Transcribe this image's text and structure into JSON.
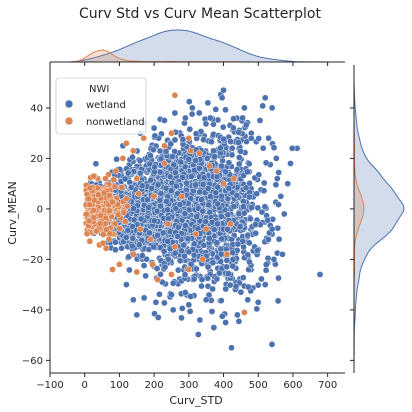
{
  "chart_data": {
    "type": "scatter",
    "title": "Curv Std vs Curv Mean Scatterplot",
    "xlabel": "Curv_STD",
    "ylabel": "Curv_MEAN",
    "xlim": [
      -100,
      750
    ],
    "ylim": [
      -65,
      57
    ],
    "x_ticks": [
      -100,
      0,
      100,
      200,
      300,
      400,
      500,
      600,
      700
    ],
    "y_ticks": [
      -60,
      -40,
      -20,
      0,
      20,
      40
    ],
    "x_tick_labels": [
      "−100",
      "0",
      "100",
      "200",
      "300",
      "400",
      "500",
      "600",
      "700"
    ],
    "y_tick_labels": [
      "−60",
      "−40",
      "−20",
      "0",
      "20",
      "40"
    ],
    "grid": false,
    "marginals": [
      "top-kde-x",
      "right-kde-y"
    ],
    "legend": {
      "title": "NWI",
      "position": "top-left",
      "entries": [
        "wetland",
        "nonwetland"
      ]
    },
    "series": [
      {
        "name": "wetland",
        "color": "#4c72b0",
        "cloud": {
          "x_center": 270,
          "x_spread": 120,
          "x_min": 5,
          "x_max": 560,
          "y_spread": 11
        },
        "points": [
          [
            678,
            -26
          ],
          [
            612,
            24
          ],
          [
            598,
            24
          ],
          [
            593,
            18
          ],
          [
            552,
            20
          ],
          [
            540,
            40
          ],
          [
            520,
            44
          ],
          [
            505,
            35
          ],
          [
            480,
            30
          ],
          [
            460,
            40
          ],
          [
            400,
            47
          ],
          [
            396,
            44
          ],
          [
            362,
            36
          ],
          [
            355,
            42
          ],
          [
            540,
            -8
          ],
          [
            560,
            -12
          ],
          [
            565,
            5
          ],
          [
            575,
            -2
          ],
          [
            520,
            -30
          ],
          [
            500,
            -37
          ],
          [
            470,
            -36
          ],
          [
            423,
            -55
          ],
          [
            406,
            -45
          ],
          [
            372,
            -47
          ],
          [
            332,
            -44
          ],
          [
            255,
            -40
          ],
          [
            212,
            -43
          ],
          [
            150,
            -42
          ],
          [
            140,
            -36
          ],
          [
            170,
            34
          ],
          [
            200,
            32
          ],
          [
            230,
            35
          ],
          [
            260,
            38
          ],
          [
            290,
            36
          ],
          [
            310,
            40
          ],
          [
            330,
            38
          ],
          [
            205,
            -37
          ],
          [
            250,
            -34
          ],
          [
            300,
            -38
          ],
          [
            350,
            -36
          ],
          [
            450,
            -33
          ],
          [
            480,
            28
          ],
          [
            530,
            28
          ],
          [
            545,
            -20
          ],
          [
            455,
            36
          ],
          [
            440,
            -42
          ],
          [
            555,
            12
          ],
          [
            160,
            30
          ],
          [
            120,
            -30
          ],
          [
            110,
            25
          ],
          [
            570,
            -18
          ],
          [
            585,
            10
          ]
        ]
      },
      {
        "name": "nonwetland",
        "color": "#dd8452",
        "cloud": {
          "x_center": 40,
          "x_spread": 35,
          "x_min": 2,
          "x_max": 160,
          "y_spread": 5
        },
        "points": [
          [
            260,
            45
          ],
          [
            460,
            -41
          ],
          [
            120,
            26
          ],
          [
            140,
            23
          ],
          [
            110,
            20
          ],
          [
            305,
            23
          ],
          [
            250,
            30
          ],
          [
            300,
            28
          ],
          [
            230,
            25
          ],
          [
            170,
            28
          ],
          [
            195,
            -22
          ],
          [
            230,
            18
          ],
          [
            360,
            17
          ],
          [
            190,
            -12
          ],
          [
            260,
            -15
          ],
          [
            320,
            -10
          ],
          [
            400,
            10
          ],
          [
            330,
            22
          ],
          [
            250,
            -26
          ],
          [
            350,
            -8
          ],
          [
            280,
            5
          ],
          [
            160,
            -8
          ],
          [
            200,
            5
          ],
          [
            240,
            -6
          ],
          [
            380,
            15
          ],
          [
            340,
            -20
          ],
          [
            140,
            -18
          ],
          [
            100,
            -22
          ],
          [
            80,
            -24
          ],
          [
            90,
            15
          ],
          [
            430,
            12
          ],
          [
            410,
            -18
          ],
          [
            300,
            -24
          ],
          [
            120,
            4
          ],
          [
            60,
            12
          ],
          [
            70,
            -12
          ],
          [
            150,
            12
          ],
          [
            210,
            -28
          ],
          [
            420,
            -6
          ],
          [
            150,
            -25
          ]
        ]
      }
    ]
  }
}
